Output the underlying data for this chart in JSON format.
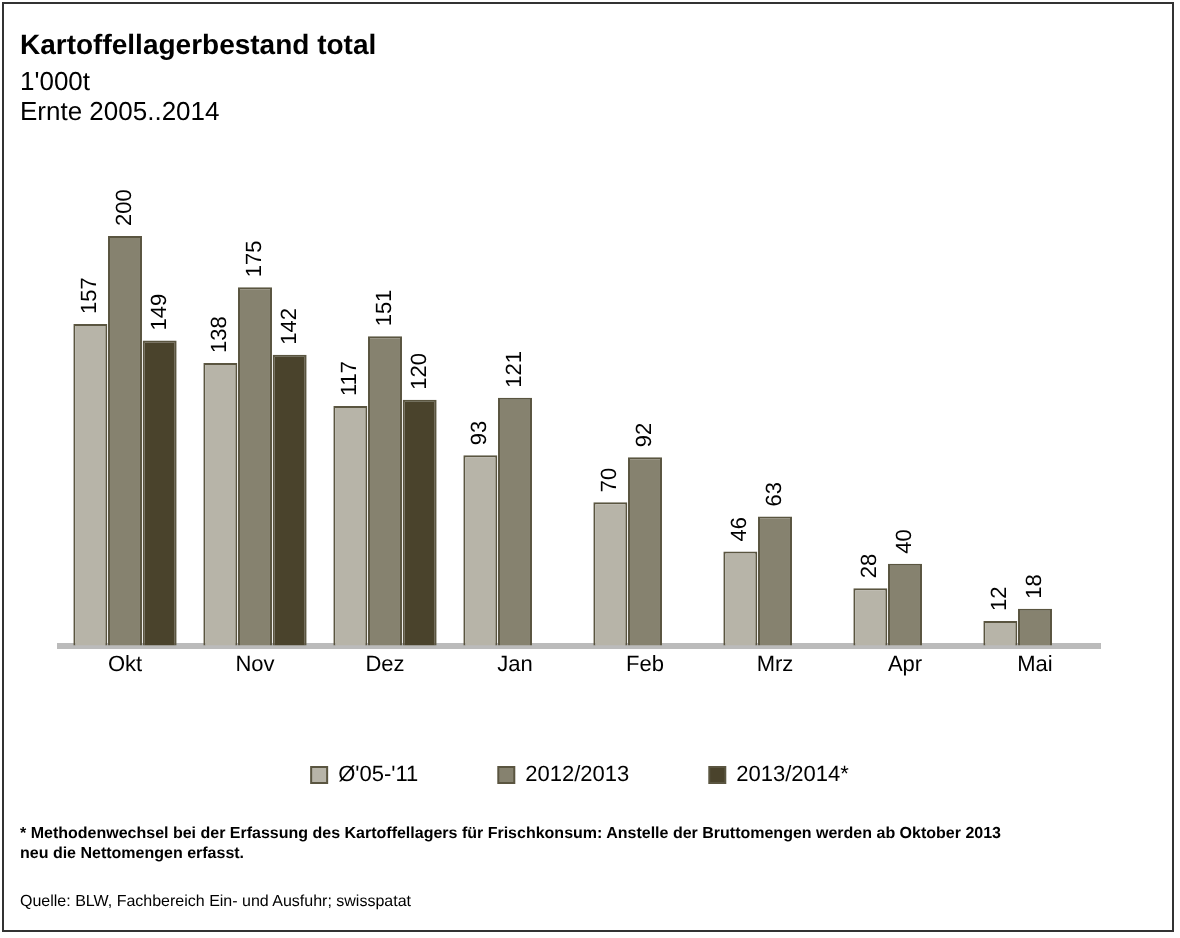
{
  "chart_data": {
    "type": "bar",
    "title": "Kartoffellagerbestand total",
    "subtitle": "1'000t\nErnte 2005..2014",
    "categories": [
      "Okt",
      "Nov",
      "Dez",
      "Jan",
      "Feb",
      "Mrz",
      "Apr",
      "Mai"
    ],
    "series": [
      {
        "name": "Ø'05-'11",
        "color": "#b7b4a8",
        "values": [
          157,
          138,
          117,
          93,
          70,
          46,
          28,
          12
        ]
      },
      {
        "name": "2012/2013",
        "color": "#86826f",
        "values": [
          200,
          175,
          151,
          121,
          92,
          63,
          40,
          18
        ]
      },
      {
        "name": "2013/2014*",
        "color": "#4a432c",
        "values": [
          149,
          142,
          120,
          null,
          null,
          null,
          null,
          null
        ]
      }
    ],
    "data_labels": true,
    "grid": false,
    "legend": "bottom",
    "annotations": [
      "* Methodenwechsel bei der Erfassung des Kartoffellagers für Frischkonsum: Anstelle der Bruttomengen werden ab Oktober 2013 neu die Nettomengen erfasst.",
      "Quelle: BLW, Fachbereich Ein- und Ausfuhr; swisspatat"
    ]
  }
}
